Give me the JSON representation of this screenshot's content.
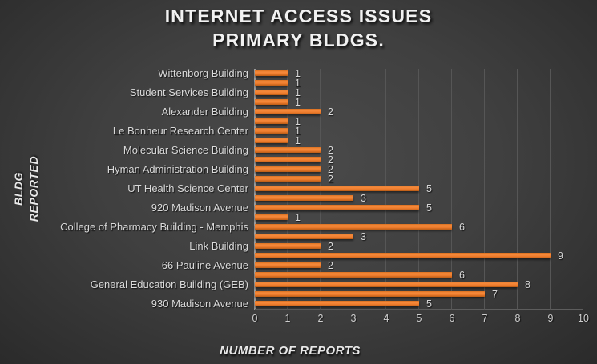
{
  "title": {
    "line1": "INTERNET ACCESS ISSUES",
    "line2": "PRIMARY BLDGS."
  },
  "axes": {
    "y_title_line1": "BLDG",
    "y_title_line2": "REPORTED",
    "x_title": "NUMBER OF REPORTS"
  },
  "colors": {
    "bar": "#ED7D31",
    "background_center": "#4A4A4A",
    "background_edge": "#232323",
    "gridline": "#565656",
    "axis_line": "#9A9A9A",
    "text": "#D9D9D9"
  },
  "chart_data": {
    "type": "bar",
    "orientation": "horizontal",
    "title": "INTERNET ACCESS ISSUES PRIMARY BLDGS.",
    "xlabel": "NUMBER OF REPORTS",
    "ylabel": "BLDG REPORTED",
    "xlim": [
      0,
      10
    ],
    "x_ticks": [
      0,
      1,
      2,
      3,
      4,
      5,
      6,
      7,
      8,
      9,
      10
    ],
    "grid": true,
    "legend": false,
    "data_labels": true,
    "rows": [
      {
        "label": "Wittenborg Building",
        "value": 1
      },
      {
        "label": "",
        "value": 1
      },
      {
        "label": "Student Services Building",
        "value": 1
      },
      {
        "label": "",
        "value": 1
      },
      {
        "label": "Alexander Building",
        "value": 2
      },
      {
        "label": "",
        "value": 1
      },
      {
        "label": "Le Bonheur Research Center",
        "value": 1
      },
      {
        "label": "",
        "value": 1
      },
      {
        "label": "Molecular Science Building",
        "value": 2
      },
      {
        "label": "",
        "value": 2
      },
      {
        "label": "Hyman Administration Building",
        "value": 2
      },
      {
        "label": "",
        "value": 2
      },
      {
        "label": "UT Health Science Center",
        "value": 5
      },
      {
        "label": "",
        "value": 3
      },
      {
        "label": "920 Madison Avenue",
        "value": 5
      },
      {
        "label": "",
        "value": 1
      },
      {
        "label": "College of Pharmacy Building - Memphis",
        "value": 6
      },
      {
        "label": "",
        "value": 3
      },
      {
        "label": "Link Building",
        "value": 2
      },
      {
        "label": "",
        "value": 9
      },
      {
        "label": "66 Pauline Avenue",
        "value": 2
      },
      {
        "label": "",
        "value": 6
      },
      {
        "label": "General Education Building (GEB)",
        "value": 8
      },
      {
        "label": "",
        "value": 7
      },
      {
        "label": "930 Madison Avenue",
        "value": 5
      }
    ]
  }
}
